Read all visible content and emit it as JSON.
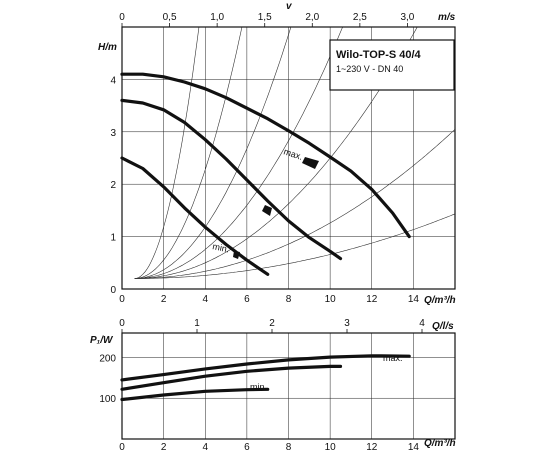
{
  "chart_data": [
    {
      "type": "line",
      "title": "Wilo-TOP-S 40/4",
      "subtitle": "1~230 V - DN 40",
      "ylabel": "H/m",
      "xlabel": "Q/m³/h",
      "top_axis_label": "v",
      "top_axis_unit": "m/s",
      "xlim": [
        0,
        16
      ],
      "ylim": [
        0,
        5
      ],
      "top_axis_lim": [
        0,
        3.5
      ],
      "grid": true,
      "x_ticks": [
        "0",
        "2",
        "4",
        "6",
        "8",
        "10",
        "12",
        "14"
      ],
      "y_ticks": [
        "0",
        "1",
        "2",
        "3",
        "4"
      ],
      "top_ticks": [
        "0",
        "0,5",
        "1,0",
        "1,5",
        "2,0",
        "2,5",
        "3,0"
      ],
      "series": [
        {
          "name": "max.",
          "x": [
            0,
            1,
            2,
            3,
            4,
            5,
            6,
            7,
            8,
            9,
            10,
            11,
            12,
            13,
            13.8
          ],
          "y": [
            4.1,
            4.1,
            4.05,
            3.95,
            3.82,
            3.65,
            3.45,
            3.25,
            3.02,
            2.78,
            2.52,
            2.25,
            1.9,
            1.45,
            1.0
          ]
        },
        {
          "name": "",
          "x": [
            0,
            1,
            2,
            3,
            4,
            5,
            6,
            7,
            8,
            9,
            10,
            10.5
          ],
          "y": [
            3.6,
            3.55,
            3.42,
            3.18,
            2.85,
            2.48,
            2.08,
            1.68,
            1.3,
            0.98,
            0.72,
            0.58
          ]
        },
        {
          "name": "min.",
          "x": [
            0,
            1,
            2,
            3,
            4,
            5,
            6,
            7
          ],
          "y": [
            2.5,
            2.3,
            1.95,
            1.55,
            1.18,
            0.85,
            0.55,
            0.28
          ]
        }
      ],
      "annotations": [
        "max.",
        "min."
      ]
    },
    {
      "type": "line",
      "ylabel": "P₁/W",
      "xlabel": "Q/m³/h",
      "top_axis_unit": "Q/l/s",
      "xlim": [
        0,
        16
      ],
      "ylim": [
        0,
        260
      ],
      "top_axis_lim": [
        0,
        4.44
      ],
      "grid": true,
      "x_ticks": [
        "0",
        "2",
        "4",
        "6",
        "8",
        "10",
        "12",
        "14"
      ],
      "y_ticks": [
        "100",
        "200"
      ],
      "top_ticks": [
        "0",
        "1",
        "2",
        "3",
        "4"
      ],
      "series": [
        {
          "name": "max.",
          "x": [
            0,
            2,
            4,
            6,
            8,
            10,
            12,
            13.8
          ],
          "y": [
            145,
            158,
            172,
            184,
            194,
            201,
            204,
            203
          ]
        },
        {
          "name": "",
          "x": [
            0,
            2,
            4,
            6,
            8,
            10,
            10.5
          ],
          "y": [
            122,
            138,
            154,
            166,
            174,
            178,
            178
          ]
        },
        {
          "name": "min.",
          "x": [
            0,
            2,
            4,
            6,
            7
          ],
          "y": [
            97,
            108,
            117,
            121,
            122
          ]
        }
      ],
      "annotations": [
        "max.",
        "min."
      ]
    }
  ]
}
